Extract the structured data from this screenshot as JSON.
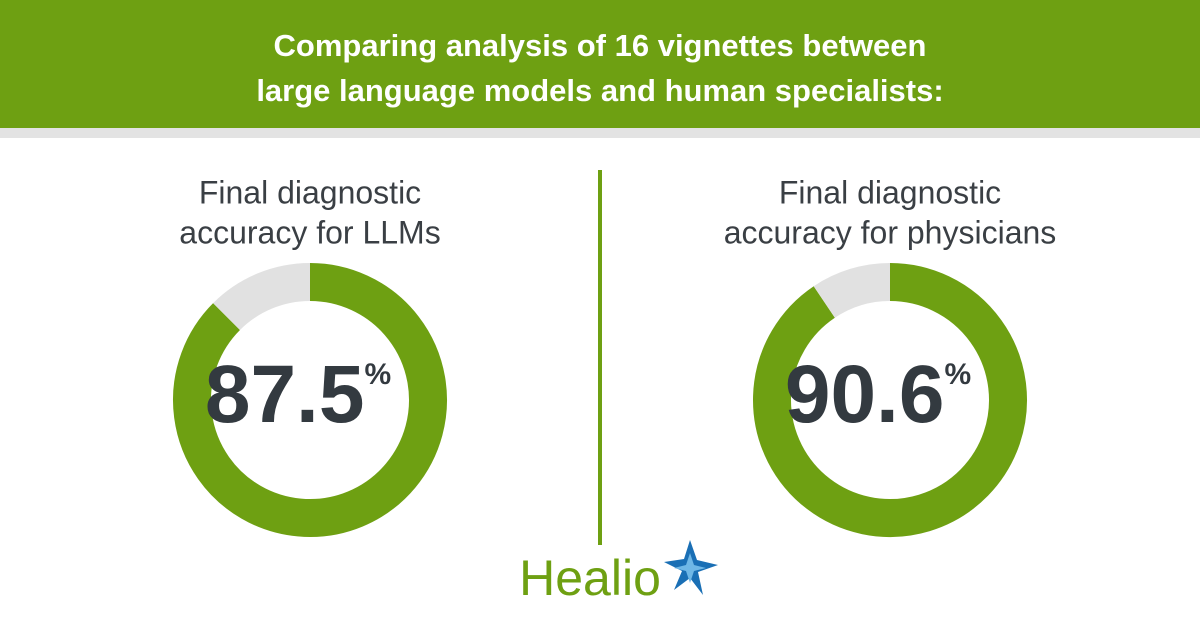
{
  "header": {
    "title": [
      "Comparing analysis of 16 vignettes between",
      "large language models and human specialists:"
    ]
  },
  "chart_data": [
    {
      "type": "donut",
      "title": [
        "Final diagnostic",
        "accuracy for LLMs"
      ],
      "values": [
        87.5,
        12.5
      ],
      "colors": [
        "#6ea012",
        "#e1e1e1"
      ],
      "unit": "%"
    },
    {
      "type": "donut",
      "title": [
        "Final diagnostic",
        "accuracy for physicians"
      ],
      "values": [
        90.6,
        9.4
      ],
      "colors": [
        "#6ea012",
        "#e1e1e1"
      ],
      "unit": "%"
    }
  ],
  "footer": {
    "logo": "Healio"
  }
}
